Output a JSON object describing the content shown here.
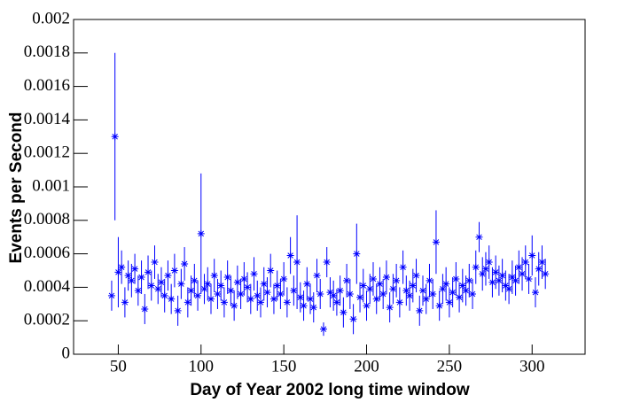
{
  "chart_data": {
    "type": "scatter",
    "x_label": "Day of Year    2002 long time window",
    "y_label": "Events per Second",
    "color": "#0000ff",
    "xlim": [
      23,
      332
    ],
    "xticks": [
      50,
      100,
      150,
      200,
      250,
      300
    ],
    "ylim": [
      0,
      0.002
    ],
    "yticks": [
      0,
      0.0002,
      0.0004,
      0.0006,
      0.0008,
      0.001,
      0.0012,
      0.0014,
      0.0016,
      0.0018,
      0.002
    ],
    "x": [
      46,
      48,
      50,
      52,
      54,
      56,
      58,
      60,
      62,
      64,
      66,
      68,
      70,
      72,
      74,
      76,
      78,
      80,
      82,
      84,
      86,
      88,
      90,
      92,
      94,
      96,
      98,
      100,
      102,
      104,
      106,
      108,
      110,
      112,
      114,
      116,
      118,
      120,
      122,
      124,
      126,
      128,
      130,
      132,
      134,
      136,
      138,
      140,
      142,
      144,
      146,
      148,
      150,
      152,
      154,
      156,
      158,
      160,
      162,
      164,
      166,
      168,
      170,
      172,
      174,
      176,
      178,
      180,
      182,
      184,
      186,
      188,
      190,
      192,
      194,
      196,
      198,
      200,
      202,
      204,
      206,
      208,
      210,
      212,
      214,
      216,
      218,
      220,
      222,
      224,
      226,
      228,
      230,
      232,
      234,
      236,
      238,
      240,
      242,
      244,
      246,
      248,
      250,
      252,
      254,
      256,
      258,
      260,
      262,
      264,
      266,
      268,
      270,
      272,
      274,
      276,
      278,
      280,
      282,
      284,
      286,
      288,
      290,
      292,
      294,
      296,
      298,
      300,
      302,
      304,
      306,
      308
    ],
    "values": [
      0.00035,
      0.0013,
      0.00049,
      0.00052,
      0.00031,
      0.00047,
      0.00044,
      0.00051,
      0.00038,
      0.00046,
      0.00027,
      0.00049,
      0.00041,
      0.00055,
      0.00039,
      0.00043,
      0.00035,
      0.00047,
      0.00033,
      0.0005,
      0.00026,
      0.00042,
      0.00054,
      0.00031,
      0.00038,
      0.00044,
      0.00035,
      0.00072,
      0.00039,
      0.00042,
      0.00033,
      0.00047,
      0.00036,
      0.00041,
      0.00031,
      0.00046,
      0.00038,
      0.00029,
      0.00043,
      0.00036,
      0.00045,
      0.0004,
      0.00033,
      0.00048,
      0.00035,
      0.00031,
      0.00042,
      0.00037,
      0.0005,
      0.00033,
      0.00041,
      0.00036,
      0.00045,
      0.00031,
      0.00059,
      0.00038,
      0.00055,
      0.00034,
      0.00029,
      0.00042,
      0.00033,
      0.00028,
      0.00047,
      0.00036,
      0.00015,
      0.00055,
      0.00037,
      0.00035,
      0.00031,
      0.00038,
      0.00025,
      0.00044,
      0.00036,
      0.00021,
      0.0006,
      0.00034,
      0.00041,
      0.00029,
      0.00039,
      0.00045,
      0.00033,
      0.00042,
      0.00036,
      0.00046,
      0.00028,
      0.00039,
      0.00044,
      0.00031,
      0.00052,
      0.00038,
      0.00035,
      0.00041,
      0.00047,
      0.00026,
      0.00038,
      0.00033,
      0.00044,
      0.00036,
      0.00067,
      0.00029,
      0.00039,
      0.00042,
      0.00031,
      0.00037,
      0.00045,
      0.00034,
      0.00041,
      0.00038,
      0.00044,
      0.00036,
      0.00052,
      0.0007,
      0.00048,
      0.00051,
      0.00055,
      0.00043,
      0.00049,
      0.00044,
      0.00047,
      0.00041,
      0.00039,
      0.00046,
      0.00044,
      0.00052,
      0.00048,
      0.00055,
      0.00045,
      0.00059,
      0.00037,
      0.00051,
      0.00055,
      0.00048
    ],
    "errors": [
      9e-05,
      0.0005,
      0.00021,
      0.0001,
      9e-05,
      9e-05,
      0.0001,
      9e-05,
      9e-05,
      0.0001,
      9e-05,
      0.0001,
      9e-05,
      0.0001,
      9e-05,
      9e-05,
      0.0001,
      9e-05,
      9e-05,
      0.0001,
      9e-05,
      9e-05,
      0.0001,
      9e-05,
      9e-05,
      0.0001,
      9e-05,
      0.00036,
      9e-05,
      0.0001,
      9e-05,
      0.0001,
      9e-05,
      9e-05,
      9e-05,
      0.0001,
      9e-05,
      9e-05,
      0.0001,
      9e-05,
      0.0001,
      9e-05,
      9e-05,
      0.0001,
      9e-05,
      9e-05,
      0.0001,
      9e-05,
      0.0001,
      9e-05,
      9e-05,
      9e-05,
      0.0001,
      9e-05,
      0.00011,
      9e-05,
      0.00028,
      9e-05,
      9e-05,
      0.0001,
      9e-05,
      9e-05,
      0.0001,
      9e-05,
      4e-05,
      9e-05,
      9e-05,
      9e-05,
      8e-05,
      9e-05,
      9e-05,
      0.0001,
      9e-05,
      9e-05,
      0.00018,
      9e-05,
      0.0001,
      9e-05,
      9e-05,
      0.0001,
      9e-05,
      0.0001,
      9e-05,
      0.0001,
      9e-05,
      9e-05,
      0.0001,
      9e-05,
      0.0001,
      9e-05,
      9e-05,
      0.0001,
      0.0001,
      9e-05,
      9e-05,
      9e-05,
      0.0001,
      9e-05,
      0.00019,
      9e-05,
      9e-05,
      0.0001,
      9e-05,
      9e-05,
      0.0001,
      9e-05,
      0.0001,
      9e-05,
      0.0001,
      9e-05,
      0.0001,
      9e-05,
      0.0001,
      0.0001,
      0.0001,
      9e-05,
      0.0001,
      9e-05,
      0.0001,
      9e-05,
      9e-05,
      0.0001,
      9e-05,
      0.0001,
      0.0001,
      0.0001,
      9e-05,
      0.00012,
      9e-05,
      0.0001,
      0.0001,
      9e-05
    ]
  }
}
